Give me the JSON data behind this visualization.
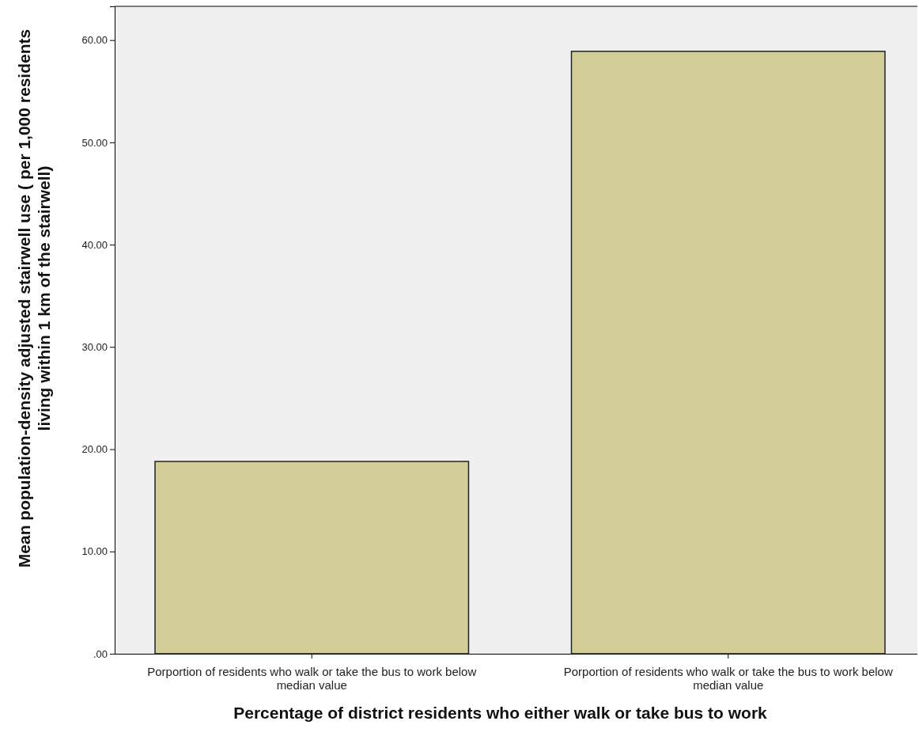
{
  "chart_data": {
    "type": "bar",
    "xlabel": "Percentage of district residents who either walk or take bus to work",
    "ylabel": "Mean population-density adjusted stairwell use ( per 1,000 residents living within 1 km of the stairwell)",
    "categories": [
      "Porportion of residents who walk or  take the bus to work  below median value",
      "Porportion of residents who walk or  take the bus to work  below median value"
    ],
    "values": [
      18.8,
      58.9
    ],
    "color": "#d3cd97",
    "ylim": [
      0,
      63.3
    ],
    "yticks": [
      {
        "value": 0,
        "label": ".00"
      },
      {
        "value": 10,
        "label": "10.00"
      },
      {
        "value": 20,
        "label": "20.00"
      },
      {
        "value": 30,
        "label": "30.00"
      },
      {
        "value": 40,
        "label": "40.00"
      },
      {
        "value": 50,
        "label": "50.00"
      },
      {
        "value": 60,
        "label": "60.00"
      }
    ],
    "grid": false
  }
}
